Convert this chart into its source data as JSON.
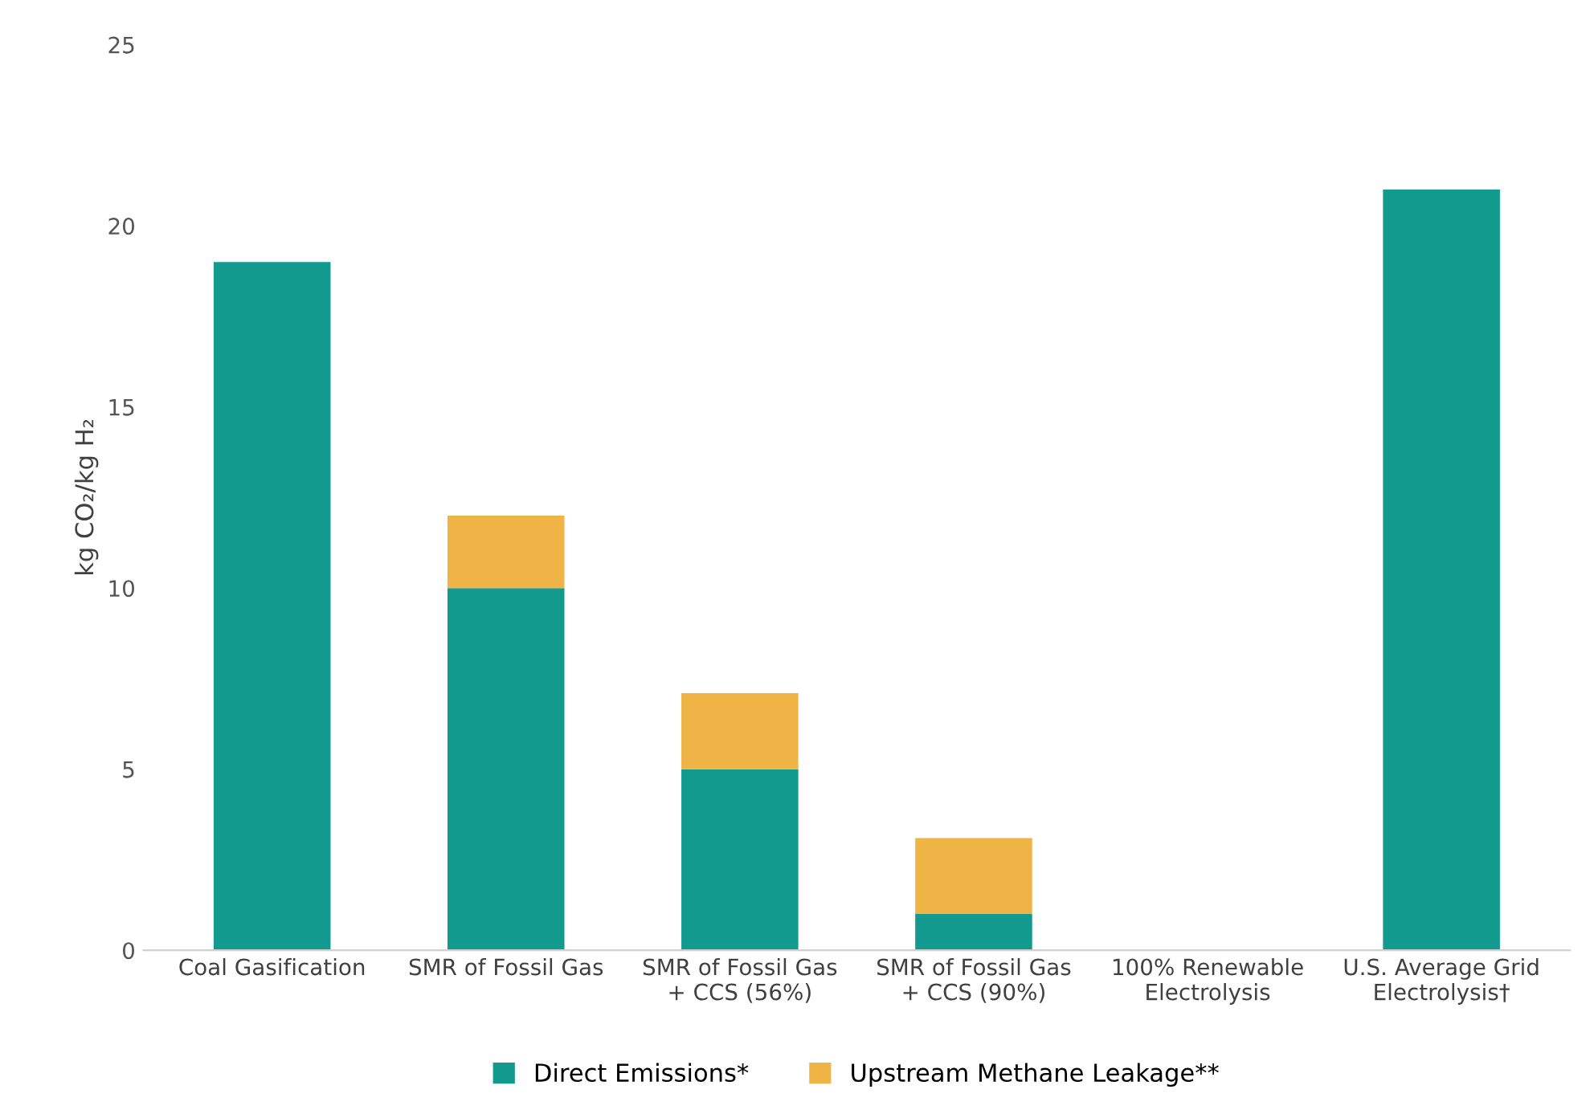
{
  "chart_data": {
    "type": "bar",
    "stacked": true,
    "ylabel": "kg CO₂/kg H₂",
    "categories": [
      "Coal Gasification",
      "SMR of Fossil Gas",
      "SMR of Fossil Gas\n+ CCS (56%)",
      "SMR of Fossil Gas\n+ CCS (90%)",
      "100% Renewable\nElectrolysis",
      "U.S. Average Grid\nElectrolysis†"
    ],
    "series": [
      {
        "name": "Direct Emissions*",
        "color": "#129a8e",
        "values": [
          19,
          10,
          5,
          1,
          0,
          21
        ]
      },
      {
        "name": "Upstream Methane Leakage**",
        "color": "#f0b446",
        "values": [
          0,
          2,
          2.1,
          2.1,
          0,
          0
        ]
      }
    ],
    "ylim": [
      0,
      25
    ],
    "yticks": [
      0,
      5,
      10,
      15,
      20,
      25
    ],
    "grid": false,
    "legend": "bottom"
  }
}
